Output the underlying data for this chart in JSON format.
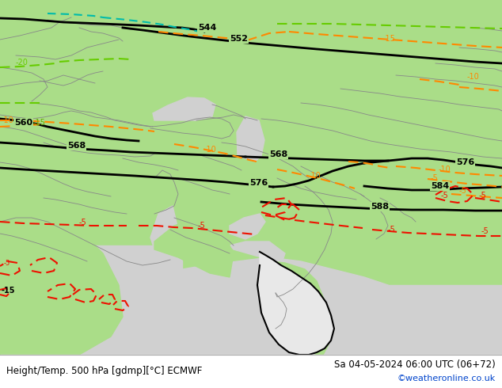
{
  "title_left": "Height/Temp. 500 hPa [gdmp][°C] ECMWF",
  "title_right": "Sa 04-05-2024 06:00 UTC (06+72)",
  "watermark": "©weatheronline.co.uk",
  "land_color": "#aadd88",
  "sea_color": "#d0d0d0",
  "border_color": "#888888",
  "figsize": [
    6.34,
    4.9
  ],
  "dpi": 100,
  "bottom_bar_color": "#ffffff",
  "bottom_text_color": "#000000",
  "watermark_color": "#0044cc",
  "geo_color": "#000000",
  "temp_orange": "#ff8800",
  "temp_red": "#ee1100",
  "temp_cyan": "#00bbaa",
  "temp_green": "#88bb00",
  "temp_lgreen": "#66cc00"
}
